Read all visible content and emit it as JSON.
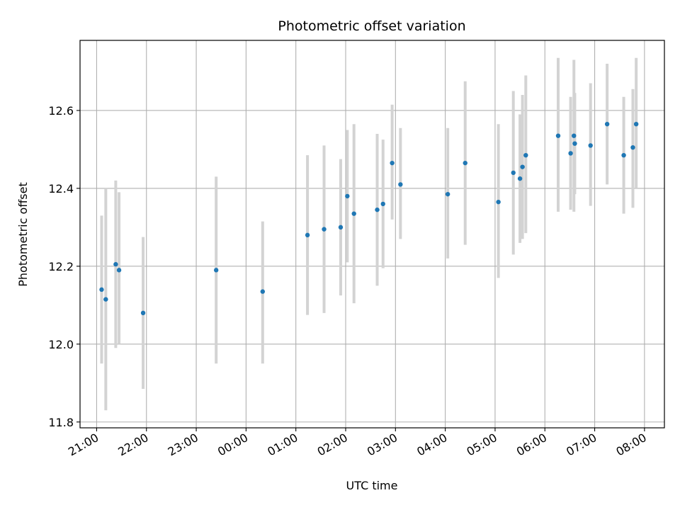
{
  "chart_data": {
    "type": "scatter",
    "title": "Photometric offset variation",
    "xlabel": "UTC time",
    "ylabel": "Photometric offset",
    "grid": true,
    "xlim": [
      "20:40",
      "08:24"
    ],
    "ylim": [
      11.785,
      12.78
    ],
    "x_ticks": [
      "21:00",
      "22:00",
      "23:00",
      "00:00",
      "01:00",
      "02:00",
      "03:00",
      "04:00",
      "05:00",
      "06:00",
      "07:00",
      "08:00"
    ],
    "y_ticks": [
      "11.8",
      "12.0",
      "12.2",
      "12.4",
      "12.6"
    ],
    "marker_color": "#1f77b4",
    "errorbar_color": "#d3d3d3",
    "points": [
      {
        "x": "21:06",
        "y": 12.14,
        "ylo": 11.95,
        "yhi": 12.33
      },
      {
        "x": "21:11",
        "y": 12.115,
        "ylo": 11.83,
        "yhi": 12.4
      },
      {
        "x": "21:23",
        "y": 12.205,
        "ylo": 11.99,
        "yhi": 12.42
      },
      {
        "x": "21:27",
        "y": 12.19,
        "ylo": 12.0,
        "yhi": 12.39
      },
      {
        "x": "21:56",
        "y": 12.08,
        "ylo": 11.885,
        "yhi": 12.275
      },
      {
        "x": "23:24",
        "y": 12.19,
        "ylo": 11.95,
        "yhi": 12.43
      },
      {
        "x": "00:20",
        "y": 12.135,
        "ylo": 11.95,
        "yhi": 12.315
      },
      {
        "x": "01:14",
        "y": 12.28,
        "ylo": 12.075,
        "yhi": 12.485
      },
      {
        "x": "01:34",
        "y": 12.295,
        "ylo": 12.08,
        "yhi": 12.51
      },
      {
        "x": "01:54",
        "y": 12.3,
        "ylo": 12.125,
        "yhi": 12.475
      },
      {
        "x": "02:02",
        "y": 12.38,
        "ylo": 12.21,
        "yhi": 12.55
      },
      {
        "x": "02:10",
        "y": 12.335,
        "ylo": 12.105,
        "yhi": 12.565
      },
      {
        "x": "02:38",
        "y": 12.345,
        "ylo": 12.15,
        "yhi": 12.54
      },
      {
        "x": "02:45",
        "y": 12.36,
        "ylo": 12.195,
        "yhi": 12.525
      },
      {
        "x": "02:56",
        "y": 12.465,
        "ylo": 12.32,
        "yhi": 12.615
      },
      {
        "x": "03:06",
        "y": 12.41,
        "ylo": 12.27,
        "yhi": 12.555
      },
      {
        "x": "04:03",
        "y": 12.385,
        "ylo": 12.22,
        "yhi": 12.555
      },
      {
        "x": "04:24",
        "y": 12.465,
        "ylo": 12.255,
        "yhi": 12.675
      },
      {
        "x": "05:04",
        "y": 12.365,
        "ylo": 12.17,
        "yhi": 12.565
      },
      {
        "x": "05:22",
        "y": 12.44,
        "ylo": 12.23,
        "yhi": 12.65
      },
      {
        "x": "05:30",
        "y": 12.425,
        "ylo": 12.26,
        "yhi": 12.59
      },
      {
        "x": "05:33",
        "y": 12.455,
        "ylo": 12.27,
        "yhi": 12.64
      },
      {
        "x": "05:37",
        "y": 12.485,
        "ylo": 12.285,
        "yhi": 12.69
      },
      {
        "x": "06:16",
        "y": 12.535,
        "ylo": 12.34,
        "yhi": 12.735
      },
      {
        "x": "06:31",
        "y": 12.49,
        "ylo": 12.345,
        "yhi": 12.635
      },
      {
        "x": "06:35",
        "y": 12.535,
        "ylo": 12.34,
        "yhi": 12.73
      },
      {
        "x": "06:36",
        "y": 12.515,
        "ylo": 12.385,
        "yhi": 12.645
      },
      {
        "x": "06:55",
        "y": 12.51,
        "ylo": 12.355,
        "yhi": 12.67
      },
      {
        "x": "07:15",
        "y": 12.565,
        "ylo": 12.41,
        "yhi": 12.72
      },
      {
        "x": "07:35",
        "y": 12.485,
        "ylo": 12.335,
        "yhi": 12.635
      },
      {
        "x": "07:46",
        "y": 12.505,
        "ylo": 12.35,
        "yhi": 12.655
      },
      {
        "x": "07:50",
        "y": 12.565,
        "ylo": 12.4,
        "yhi": 12.735
      }
    ]
  }
}
